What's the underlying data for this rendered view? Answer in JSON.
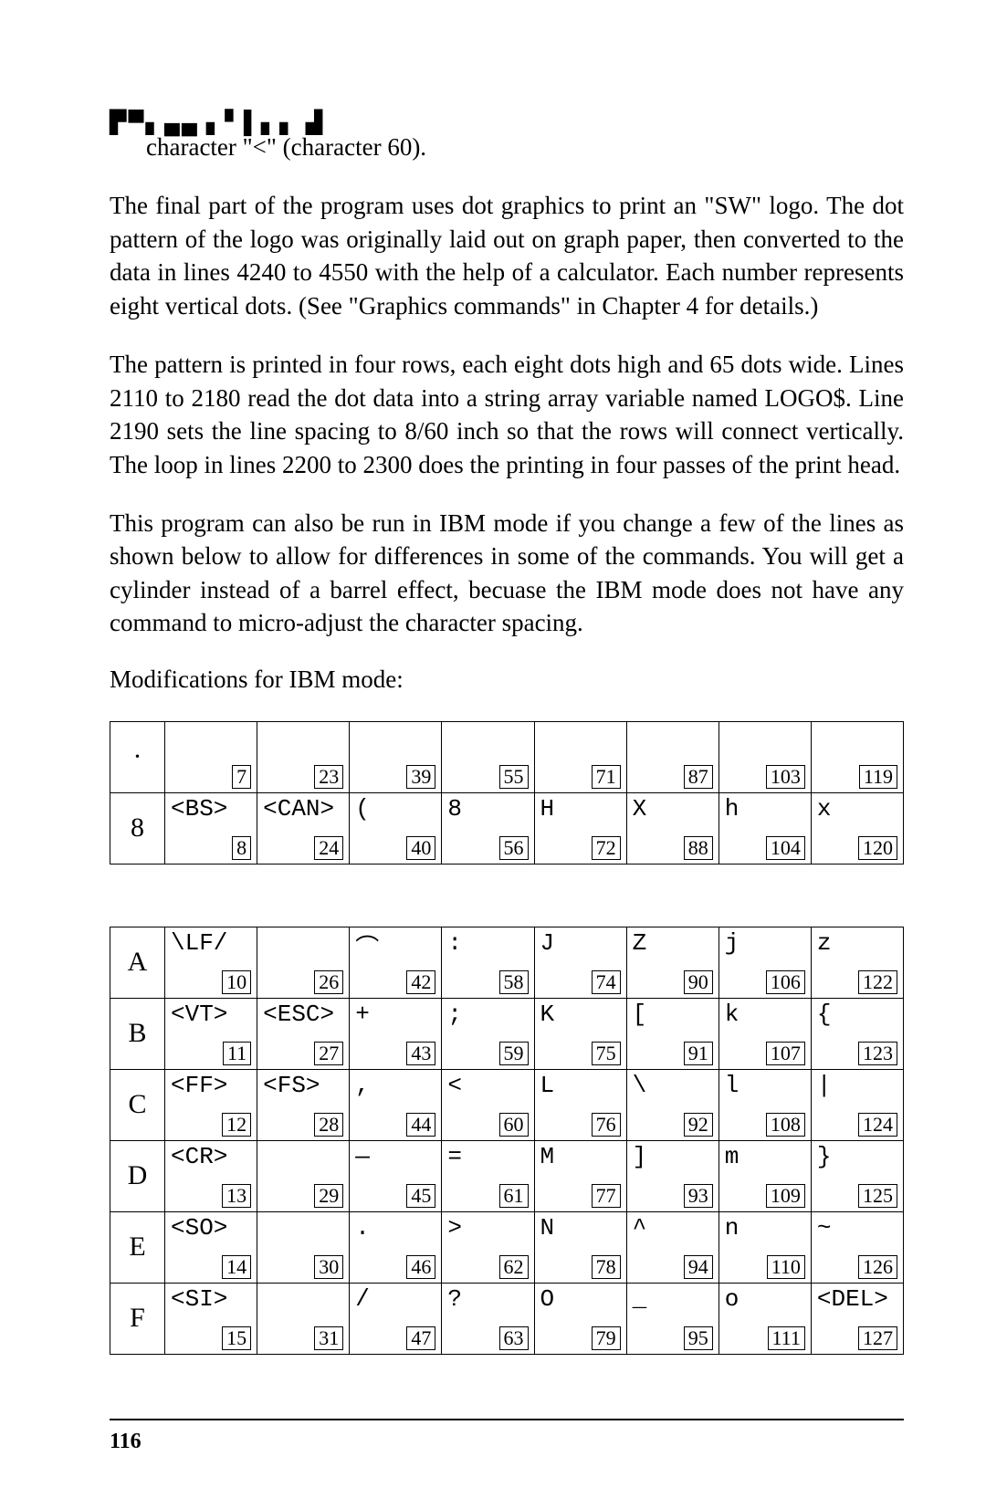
{
  "hat_stub": "▛▀▖▄▄ ▖▘▌▖▖ ▟",
  "para1": "character \"<\" (character 60).",
  "para2": "The final part of the program uses dot graphics to print an \"SW\" logo. The dot pattern of the logo was originally laid out on graph paper, then converted to the data in lines 4240 to 4550 with the help of a calculator. Each number represents eight vertical dots. (See \"Graphics commands\" in Chapter 4 for details.)",
  "para3": "The pattern is printed in four rows, each eight dots high and 65 dots wide. Lines 2110 to 2180 read the dot data into a string array variable named LOGO$. Line 2190 sets the line spacing to 8/60 inch so that the rows will connect vertically. The loop in lines 2200 to 2300 does the printing in four passes of the print head.",
  "para4": "This program can also be run in IBM mode if you change a few of the lines as shown below to allow for differences in some of the commands. You will get a cylinder instead of a barrel effect, becuase the IBM mode does not have any command to micro-adjust the character spacing.",
  "mods_label": "Modifications for IBM mode:",
  "rowTop": {
    "hex": "·",
    "cells": [
      {
        "char": "",
        "code": "7"
      },
      {
        "char": "",
        "code": "23"
      },
      {
        "char": "",
        "code": "39"
      },
      {
        "char": "",
        "code": "55"
      },
      {
        "char": "",
        "code": "71"
      },
      {
        "char": "",
        "code": "87"
      },
      {
        "char": "",
        "code": "103"
      },
      {
        "char": "",
        "code": "119"
      }
    ]
  },
  "row8": {
    "hex": "8",
    "cells": [
      {
        "char": "<BS>",
        "code": "8"
      },
      {
        "char": "<CAN>",
        "code": "24"
      },
      {
        "char": "(",
        "code": "40"
      },
      {
        "char": "8",
        "code": "56"
      },
      {
        "char": "H",
        "code": "72"
      },
      {
        "char": "X",
        "code": "88"
      },
      {
        "char": "h",
        "code": "104"
      },
      {
        "char": "x",
        "code": "120"
      }
    ]
  },
  "rowsAF": [
    {
      "hex": "A",
      "cells": [
        {
          "char": "\\LF/",
          "code": "10"
        },
        {
          "char": "",
          "code": "26"
        },
        {
          "char": "⌒",
          "code": "42"
        },
        {
          "char": ":",
          "code": "58"
        },
        {
          "char": "J",
          "code": "74"
        },
        {
          "char": "Z",
          "code": "90"
        },
        {
          "char": "j",
          "code": "106"
        },
        {
          "char": "z",
          "code": "122"
        }
      ]
    },
    {
      "hex": "B",
      "cells": [
        {
          "char": "<VT>",
          "code": "11"
        },
        {
          "char": "<ESC>",
          "code": "27"
        },
        {
          "char": "+",
          "code": "43"
        },
        {
          "char": ";",
          "code": "59"
        },
        {
          "char": "K",
          "code": "75"
        },
        {
          "char": "[",
          "code": "91"
        },
        {
          "char": "k",
          "code": "107"
        },
        {
          "char": "{",
          "code": "123"
        }
      ]
    },
    {
      "hex": "C",
      "cells": [
        {
          "char": "<FF>",
          "code": "12"
        },
        {
          "char": "<FS>",
          "code": "28"
        },
        {
          "char": ",",
          "code": "44"
        },
        {
          "char": "<",
          "code": "60"
        },
        {
          "char": "L",
          "code": "76"
        },
        {
          "char": "\\",
          "code": "92"
        },
        {
          "char": "l",
          "code": "108"
        },
        {
          "char": "|",
          "code": "124"
        }
      ]
    },
    {
      "hex": "D",
      "cells": [
        {
          "char": "<CR>",
          "code": "13"
        },
        {
          "char": "",
          "code": "29"
        },
        {
          "char": "—",
          "code": "45"
        },
        {
          "char": "=",
          "code": "61"
        },
        {
          "char": "M",
          "code": "77"
        },
        {
          "char": "]",
          "code": "93"
        },
        {
          "char": "m",
          "code": "109"
        },
        {
          "char": "}",
          "code": "125"
        }
      ]
    },
    {
      "hex": "E",
      "cells": [
        {
          "char": "<SO>",
          "code": "14"
        },
        {
          "char": "",
          "code": "30"
        },
        {
          "char": ".",
          "code": "46"
        },
        {
          "char": ">",
          "code": "62"
        },
        {
          "char": "N",
          "code": "78"
        },
        {
          "char": "^",
          "code": "94"
        },
        {
          "char": "n",
          "code": "110"
        },
        {
          "char": "~",
          "code": "126"
        }
      ]
    },
    {
      "hex": "F",
      "cells": [
        {
          "char": "<SI>",
          "code": "15"
        },
        {
          "char": "",
          "code": "31"
        },
        {
          "char": "/",
          "code": "47"
        },
        {
          "char": "?",
          "code": "63"
        },
        {
          "char": "O",
          "code": "79"
        },
        {
          "char": "_",
          "code": "95"
        },
        {
          "char": "o",
          "code": "111"
        },
        {
          "char": "<DEL>",
          "code": "127"
        }
      ]
    }
  ],
  "page_number": "116",
  "colors": {
    "text": "#000000",
    "bg": "#ffffff",
    "border": "#000000"
  }
}
